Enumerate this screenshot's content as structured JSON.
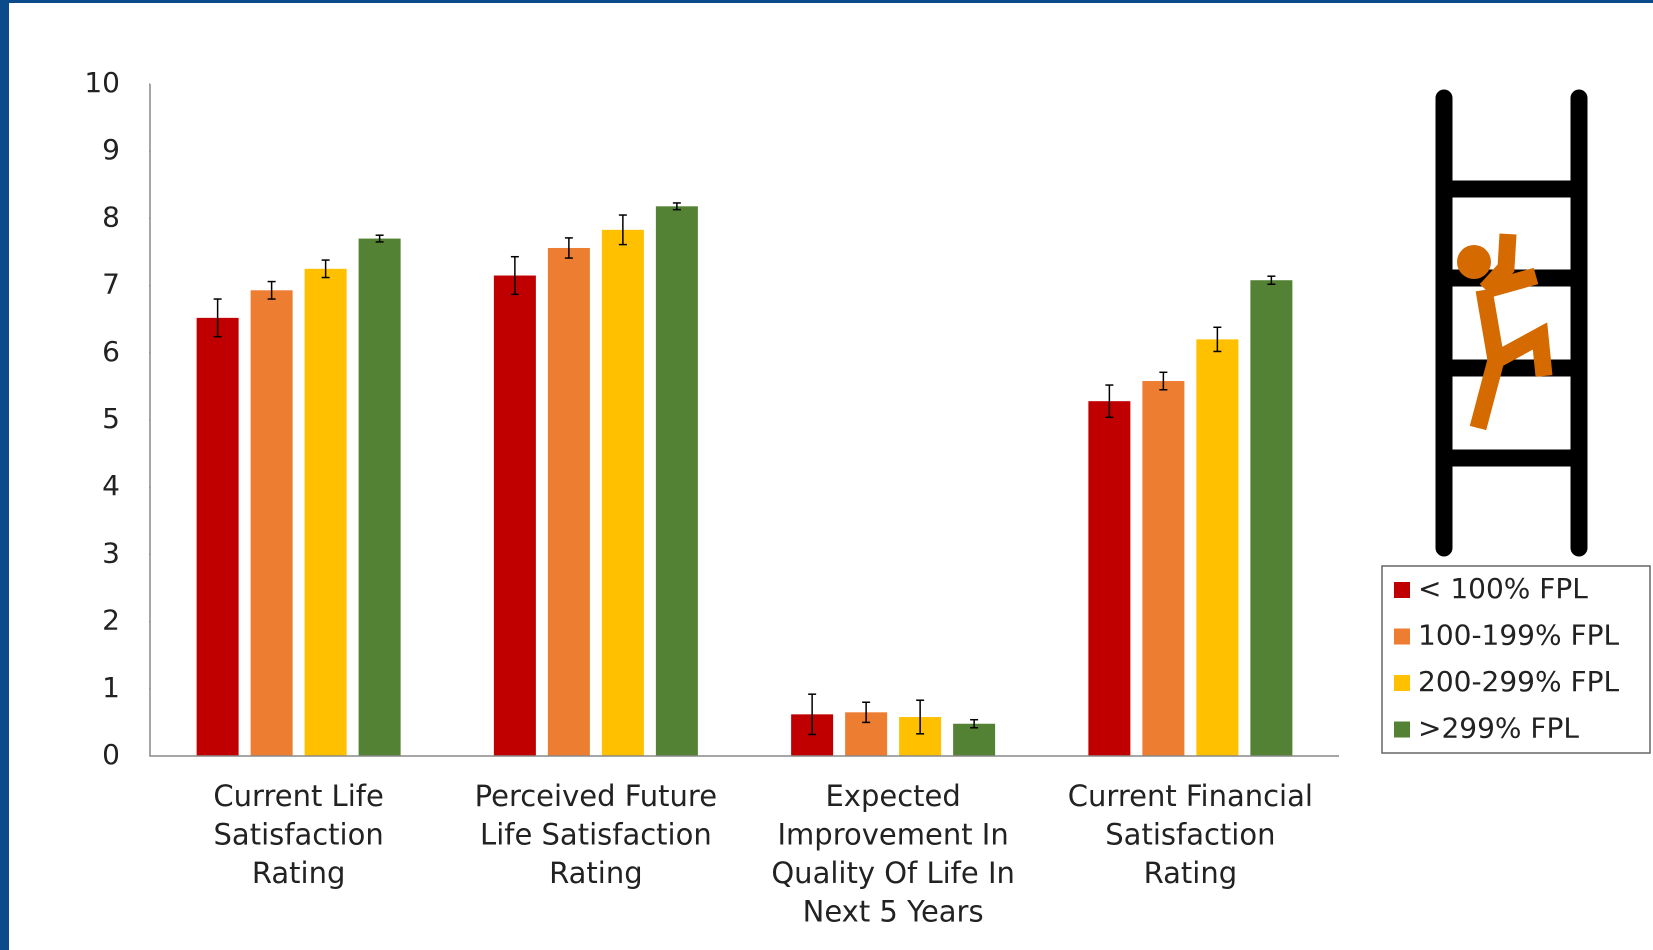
{
  "chart_data": {
    "type": "bar",
    "categories": [
      [
        "Current Life",
        "Satisfaction",
        "Rating"
      ],
      [
        "Perceived Future",
        "Life Satisfaction",
        "Rating"
      ],
      [
        "Expected",
        "Improvement In",
        "Quality Of Life In",
        "Next 5 Years"
      ],
      [
        "Current Financial",
        "Satisfaction",
        "Rating"
      ]
    ],
    "series": [
      {
        "name": "< 100% FPL",
        "color": "#c00000",
        "values": [
          6.52,
          7.15,
          0.62,
          5.28
        ],
        "errors": [
          0.28,
          0.28,
          0.3,
          0.24
        ]
      },
      {
        "name": "100-199% FPL",
        "color": "#ed7d31",
        "values": [
          6.93,
          7.56,
          0.65,
          5.58
        ],
        "errors": [
          0.13,
          0.15,
          0.15,
          0.13
        ]
      },
      {
        "name": "200-299% FPL",
        "color": "#ffc000",
        "values": [
          7.25,
          7.83,
          0.58,
          6.2
        ],
        "errors": [
          0.13,
          0.22,
          0.25,
          0.18
        ]
      },
      {
        "name": ">299% FPL",
        "color": "#548235",
        "values": [
          7.7,
          8.18,
          0.48,
          7.08
        ],
        "errors": [
          0.05,
          0.05,
          0.06,
          0.06
        ]
      }
    ],
    "ylim": [
      0,
      10
    ],
    "yticks": [
      0,
      1,
      2,
      3,
      4,
      5,
      6,
      7,
      8,
      9,
      10
    ],
    "grid": false,
    "legend": "right"
  }
}
